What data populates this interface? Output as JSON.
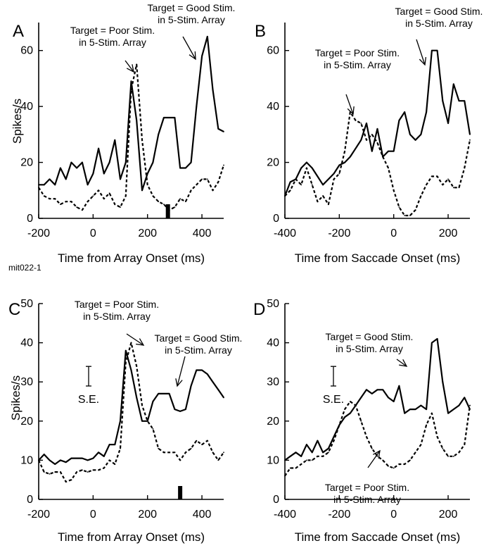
{
  "figure_id": "mit022-1",
  "chart_data": [
    {
      "panel": "A",
      "type": "line",
      "xlabel": "Time from Array Onset (ms)",
      "ylabel": "Spikes/s",
      "xlim": [
        -200,
        480
      ],
      "ylim": [
        0,
        70
      ],
      "xticks": [
        -200,
        0,
        200,
        400
      ],
      "yticks": [
        0,
        20,
        40,
        60
      ],
      "series": [
        {
          "style": "solid",
          "x": [
            -200,
            -180,
            -160,
            -140,
            -120,
            -100,
            -80,
            -60,
            -40,
            -20,
            0,
            20,
            40,
            60,
            80,
            100,
            120,
            140,
            160,
            180,
            200,
            220,
            240,
            260,
            280,
            300,
            320,
            340,
            360,
            380,
            400,
            420,
            440,
            460,
            480
          ],
          "y": [
            12,
            12,
            14,
            12,
            18,
            14,
            20,
            18,
            20,
            12,
            16,
            25,
            16,
            20,
            28,
            14,
            20,
            49,
            35,
            10,
            16,
            20,
            30,
            36,
            36,
            36,
            18,
            18,
            20,
            40,
            58,
            65,
            46,
            32,
            31
          ]
        },
        {
          "style": "dashed",
          "x": [
            -200,
            -180,
            -160,
            -140,
            -120,
            -100,
            -80,
            -60,
            -40,
            -20,
            0,
            20,
            40,
            60,
            80,
            100,
            120,
            140,
            160,
            180,
            200,
            220,
            240,
            260,
            280,
            300,
            320,
            340,
            360,
            380,
            400,
            420,
            440,
            460,
            480
          ],
          "y": [
            11,
            8,
            7,
            7,
            5,
            6,
            6,
            4,
            3,
            6,
            8,
            10,
            7,
            9,
            5,
            4,
            8,
            46,
            55,
            28,
            12,
            8,
            6,
            5,
            3,
            4,
            7,
            6,
            10,
            12,
            14,
            14,
            10,
            13,
            19
          ]
        }
      ],
      "event_marker_x": 275,
      "annotations": [
        {
          "lines": [
            "Target = Poor Stim.",
            "in 5-Stim. Array"
          ],
          "points_to": "dashed"
        },
        {
          "lines": [
            "Target = Good Stim.",
            "in 5-Stim. Array"
          ],
          "points_to": "solid"
        }
      ]
    },
    {
      "panel": "B",
      "type": "line",
      "xlabel": "Time from Saccade Onset (ms)",
      "ylabel": "",
      "xlim": [
        -400,
        280
      ],
      "ylim": [
        0,
        70
      ],
      "xticks": [
        -400,
        -200,
        0,
        200
      ],
      "yticks": [
        0,
        20,
        40,
        60
      ],
      "series": [
        {
          "style": "solid",
          "x": [
            -400,
            -380,
            -360,
            -340,
            -320,
            -300,
            -280,
            -260,
            -240,
            -220,
            -200,
            -180,
            -160,
            -140,
            -120,
            -100,
            -80,
            -60,
            -40,
            -20,
            0,
            20,
            40,
            60,
            80,
            100,
            120,
            140,
            160,
            180,
            200,
            220,
            240,
            260,
            280
          ],
          "y": [
            8,
            13,
            14,
            18,
            20,
            18,
            15,
            12,
            14,
            16,
            19,
            20,
            22,
            25,
            28,
            34,
            24,
            32,
            22,
            24,
            24,
            35,
            38,
            30,
            28,
            30,
            38,
            60,
            60,
            42,
            34,
            48,
            42,
            42,
            30
          ]
        },
        {
          "style": "dashed",
          "x": [
            -400,
            -380,
            -360,
            -340,
            -320,
            -300,
            -280,
            -260,
            -240,
            -220,
            -200,
            -180,
            -160,
            -140,
            -120,
            -100,
            -80,
            -60,
            -40,
            -20,
            0,
            20,
            40,
            60,
            80,
            100,
            120,
            140,
            160,
            180,
            200,
            220,
            240,
            260,
            280
          ],
          "y": [
            8,
            10,
            14,
            12,
            18,
            12,
            6,
            8,
            5,
            14,
            16,
            24,
            38,
            35,
            34,
            28,
            30,
            27,
            22,
            18,
            10,
            4,
            1,
            1,
            3,
            8,
            12,
            15,
            15,
            12,
            14,
            11,
            11,
            18,
            28
          ]
        }
      ],
      "annotations": [
        {
          "lines": [
            "Target = Good Stim.",
            "in 5-Stim. Array"
          ],
          "points_to": "solid"
        },
        {
          "lines": [
            "Target = Poor Stim.",
            "in 5-Stim. Array"
          ],
          "points_to": "dashed"
        }
      ]
    },
    {
      "panel": "C",
      "type": "line",
      "xlabel": "Time from Array Onset (ms)",
      "ylabel": "Spikes/s",
      "xlim": [
        -200,
        480
      ],
      "ylim": [
        0,
        50
      ],
      "xticks": [
        -200,
        0,
        200,
        400
      ],
      "yticks": [
        0,
        10,
        20,
        30,
        40,
        50
      ],
      "series": [
        {
          "style": "solid",
          "x": [
            -200,
            -180,
            -160,
            -140,
            -120,
            -100,
            -80,
            -60,
            -40,
            -20,
            0,
            20,
            40,
            60,
            80,
            100,
            120,
            140,
            160,
            180,
            200,
            220,
            240,
            260,
            280,
            300,
            320,
            340,
            360,
            380,
            400,
            420,
            440,
            460,
            480
          ],
          "y": [
            10,
            11.5,
            10,
            9,
            10,
            9.5,
            10.5,
            10.5,
            10.5,
            10,
            10.5,
            12,
            11,
            14,
            14,
            20,
            38,
            33,
            26,
            20,
            20,
            25,
            27,
            27,
            27,
            23,
            22.5,
            23,
            29,
            33,
            33,
            32,
            30,
            28,
            26
          ]
        },
        {
          "style": "dashed",
          "x": [
            -200,
            -180,
            -160,
            -140,
            -120,
            -100,
            -80,
            -60,
            -40,
            -20,
            0,
            20,
            40,
            60,
            80,
            100,
            120,
            140,
            160,
            180,
            200,
            220,
            240,
            260,
            280,
            300,
            320,
            340,
            360,
            380,
            400,
            420,
            440,
            460,
            480
          ],
          "y": [
            10,
            7,
            6.5,
            7,
            7,
            4.5,
            5,
            7,
            7.5,
            7,
            7.5,
            7.5,
            8,
            10,
            9,
            13,
            35,
            40,
            34,
            24,
            20,
            18,
            13,
            12,
            12,
            12,
            10,
            12,
            13,
            15,
            14,
            15,
            12,
            10,
            12
          ]
        }
      ],
      "event_marker_x": 320,
      "se_bar": {
        "label": "S.E.",
        "half_range": 2.5
      },
      "annotations": [
        {
          "lines": [
            "Target = Poor Stim.",
            "in 5-Stim. Array"
          ],
          "points_to": "dashed"
        },
        {
          "lines": [
            "Target = Good Stim.",
            "in 5-Stim. Array"
          ],
          "points_to": "solid"
        }
      ]
    },
    {
      "panel": "D",
      "type": "line",
      "xlabel": "Time from Saccade Onset (ms)",
      "ylabel": "",
      "xlim": [
        -400,
        280
      ],
      "ylim": [
        0,
        50
      ],
      "xticks": [
        -400,
        -200,
        0,
        200
      ],
      "yticks": [
        0,
        10,
        20,
        30,
        40,
        50
      ],
      "series": [
        {
          "style": "solid",
          "x": [
            -400,
            -380,
            -360,
            -340,
            -320,
            -300,
            -280,
            -260,
            -240,
            -220,
            -200,
            -180,
            -160,
            -140,
            -120,
            -100,
            -80,
            -60,
            -40,
            -20,
            0,
            20,
            40,
            60,
            80,
            100,
            120,
            140,
            160,
            180,
            200,
            220,
            240,
            260,
            280
          ],
          "y": [
            10,
            11,
            12,
            11,
            14,
            12,
            15,
            12,
            13,
            16,
            19,
            21,
            22,
            24,
            26,
            28,
            27,
            28,
            28,
            26,
            25,
            29,
            22,
            23,
            23,
            24,
            23,
            40,
            41,
            30,
            22,
            23,
            24,
            26,
            23
          ]
        },
        {
          "style": "dashed",
          "x": [
            -400,
            -380,
            -360,
            -340,
            -320,
            -300,
            -280,
            -260,
            -240,
            -220,
            -200,
            -180,
            -160,
            -140,
            -120,
            -100,
            -80,
            -60,
            -40,
            -20,
            0,
            20,
            40,
            60,
            80,
            100,
            120,
            140,
            160,
            180,
            200,
            220,
            240,
            260,
            280
          ],
          "y": [
            6,
            8,
            8,
            9,
            10,
            10,
            11,
            11,
            12,
            15,
            19,
            23,
            25,
            24,
            20,
            16,
            13,
            11,
            10,
            8.5,
            8,
            9,
            9,
            10,
            12,
            14,
            19,
            22,
            16,
            13,
            11,
            11,
            12,
            14,
            24
          ]
        }
      ],
      "se_bar": {
        "label": "S.E.",
        "half_range": 2.5
      },
      "annotations": [
        {
          "lines": [
            "Target = Good Stim.",
            "in 5-Stim. Array"
          ],
          "points_to": "solid"
        },
        {
          "lines": [
            "Target = Poor Stim.",
            "in 5-Stim. Array"
          ],
          "points_to": "dashed"
        }
      ]
    }
  ]
}
